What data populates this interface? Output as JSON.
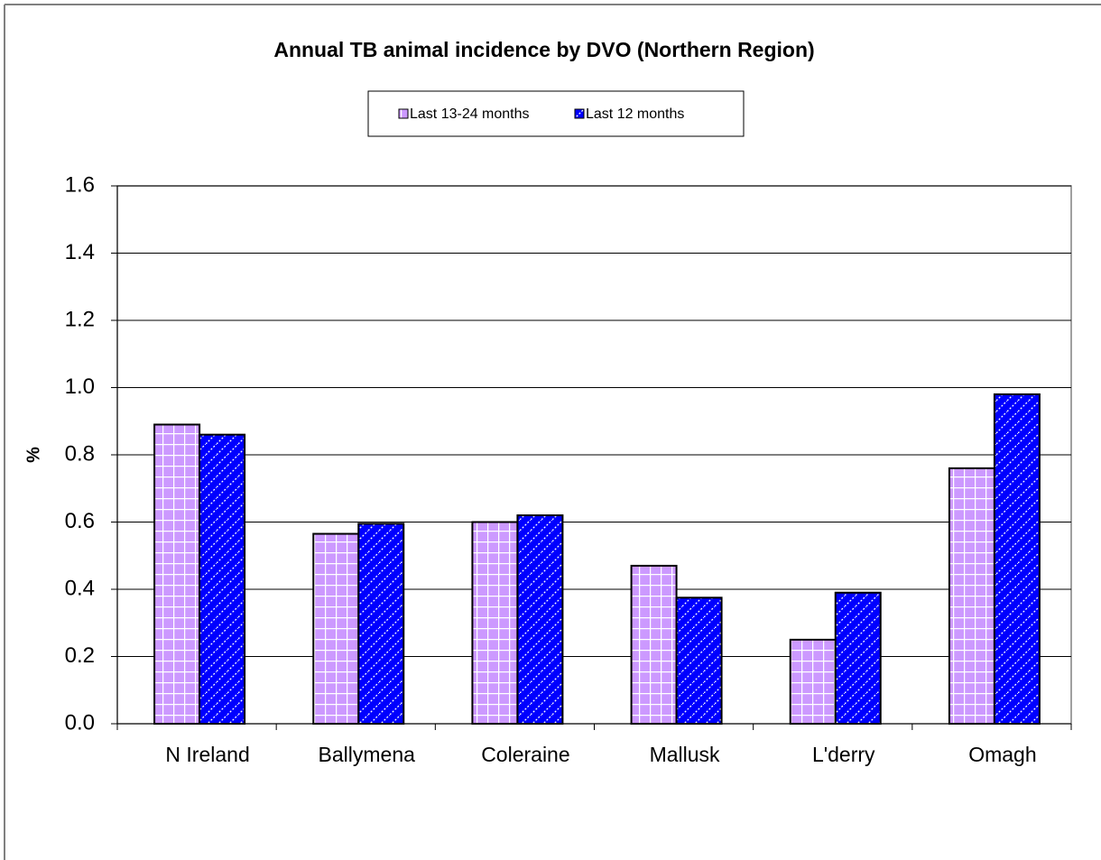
{
  "chart_data": {
    "type": "bar",
    "title": "Annual TB animal incidence by DVO (Northern Region)",
    "y_label": "%",
    "categories": [
      "N Ireland",
      "Ballymena",
      "Coleraine",
      "Mallusk",
      "L'derry",
      "Omagh"
    ],
    "series": [
      {
        "name": "Last 13-24 months",
        "color": "#cc99ff",
        "values": [
          0.89,
          0.565,
          0.6,
          0.47,
          0.25,
          0.76
        ]
      },
      {
        "name": "Last 12 months",
        "color": "#0000ff",
        "values": [
          0.86,
          0.595,
          0.62,
          0.375,
          0.39,
          0.98
        ]
      }
    ],
    "ylim": [
      0,
      1.6
    ],
    "yticks": [
      {
        "value": 0,
        "label": "0.0"
      },
      0.2,
      0.4,
      0.6,
      0.8,
      {
        "value": 1,
        "label": "1.0"
      },
      1.2,
      1.4,
      1.6
    ],
    "grid": true
  }
}
